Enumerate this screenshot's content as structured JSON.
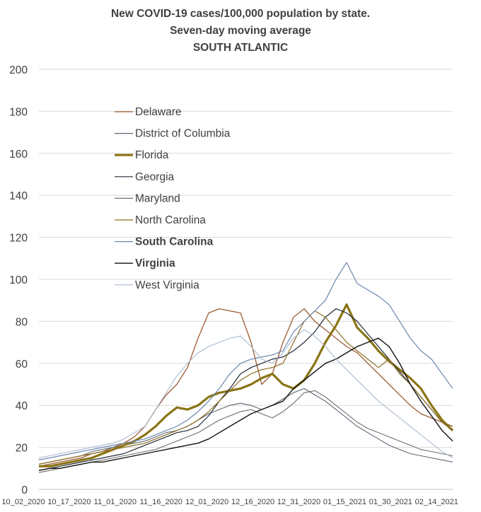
{
  "chart_data": {
    "type": "line",
    "title": [
      "New COVID-19 cases/100,000 population by state.",
      "Seven-day moving average",
      "SOUTH ATLANTIC"
    ],
    "xlabel": "",
    "ylabel": "",
    "ylim": [
      0,
      200
    ],
    "yticks": [
      0,
      20,
      40,
      60,
      80,
      100,
      120,
      140,
      160,
      180,
      200
    ],
    "xticks": [
      "10_02_2020",
      "10_17_2020",
      "11_01_2020",
      "11_16_2020",
      "12_01_2020",
      "12_16_2020",
      "12_31_2020",
      "01_15_2021",
      "01_30_2021",
      "02_14_2021"
    ],
    "grid": "horizontal",
    "legend_position": "top-left",
    "series": [
      {
        "name": "Delaware",
        "color": "#9c5a32",
        "width": 1.3,
        "values": [
          11,
          12,
          13,
          14,
          15,
          17,
          18,
          20,
          22,
          25,
          30,
          38,
          45,
          50,
          58,
          72,
          84,
          86,
          85,
          84,
          70,
          50,
          55,
          70,
          82,
          86,
          80,
          76,
          72,
          68,
          65,
          60,
          55,
          50,
          45,
          40,
          36,
          34,
          32,
          30
        ]
      },
      {
        "name": "District of Columbia",
        "color": "#5d6675",
        "width": 1.1,
        "values": [
          12,
          13,
          14,
          15,
          16,
          18,
          19,
          20,
          21,
          22,
          23,
          25,
          27,
          28,
          30,
          33,
          36,
          38,
          40,
          41,
          40,
          38,
          40,
          43,
          46,
          48,
          45,
          42,
          38,
          34,
          30,
          27,
          24,
          21,
          19,
          17,
          16,
          15,
          14,
          13
        ]
      },
      {
        "name": "Florida",
        "color": "#8a7414",
        "width": 3.2,
        "values": [
          11,
          11,
          12,
          13,
          14,
          15,
          17,
          19,
          21,
          23,
          26,
          30,
          35,
          39,
          38,
          40,
          44,
          46,
          47,
          48,
          50,
          53,
          55,
          50,
          48,
          52,
          60,
          70,
          78,
          88,
          77,
          72,
          66,
          61,
          57,
          53,
          48,
          40,
          33,
          28
        ]
      },
      {
        "name": "Georgia",
        "color": "#1f2a36",
        "width": 1.2,
        "values": [
          9,
          10,
          11,
          12,
          13,
          14,
          15,
          16,
          17,
          19,
          21,
          23,
          25,
          27,
          28,
          30,
          35,
          42,
          48,
          55,
          58,
          60,
          62,
          63,
          66,
          70,
          75,
          82,
          86,
          84,
          80,
          74,
          68,
          62,
          56,
          50,
          44,
          38,
          32,
          28
        ]
      },
      {
        "name": "Maryland",
        "color": "#6e6e6e",
        "width": 1.1,
        "values": [
          8,
          9,
          10,
          11,
          12,
          13,
          14,
          15,
          16,
          17,
          18,
          19,
          21,
          23,
          25,
          27,
          30,
          33,
          35,
          37,
          38,
          36,
          34,
          37,
          41,
          46,
          47,
          44,
          40,
          36,
          32,
          29,
          27,
          25,
          23,
          21,
          19,
          18,
          17,
          16
        ]
      },
      {
        "name": "North Carolina",
        "color": "#8b6d1e",
        "width": 1.2,
        "values": [
          12,
          13,
          14,
          15,
          16,
          17,
          18,
          19,
          20,
          21,
          22,
          24,
          26,
          28,
          30,
          33,
          37,
          42,
          47,
          52,
          55,
          57,
          58,
          60,
          70,
          80,
          85,
          82,
          76,
          70,
          66,
          62,
          58,
          62,
          55,
          50,
          44,
          38,
          32,
          28
        ]
      },
      {
        "name": "South Carolina",
        "color": "#6c88ad",
        "width": 1.2,
        "values": [
          14,
          15,
          16,
          17,
          18,
          19,
          20,
          21,
          22,
          23,
          24,
          26,
          28,
          30,
          33,
          37,
          42,
          48,
          55,
          60,
          62,
          63,
          64,
          66,
          75,
          80,
          85,
          90,
          100,
          108,
          98,
          95,
          92,
          88,
          80,
          72,
          66,
          62,
          55,
          48
        ]
      },
      {
        "name": "Virginia",
        "color": "#111111",
        "width": 1.4,
        "values": [
          9,
          10,
          10,
          11,
          12,
          13,
          13,
          14,
          15,
          16,
          17,
          18,
          19,
          20,
          21,
          22,
          24,
          27,
          30,
          33,
          36,
          38,
          40,
          42,
          48,
          52,
          56,
          60,
          62,
          65,
          68,
          70,
          72,
          68,
          60,
          50,
          42,
          35,
          28,
          23
        ]
      },
      {
        "name": "West Virginia",
        "color": "#a9b9d0",
        "width": 1.1,
        "values": [
          15,
          16,
          17,
          18,
          19,
          20,
          21,
          22,
          24,
          27,
          30,
          38,
          46,
          54,
          60,
          65,
          68,
          70,
          72,
          73,
          68,
          62,
          60,
          65,
          72,
          76,
          73,
          68,
          62,
          57,
          52,
          47,
          42,
          38,
          34,
          30,
          26,
          22,
          18,
          15
        ]
      }
    ]
  }
}
